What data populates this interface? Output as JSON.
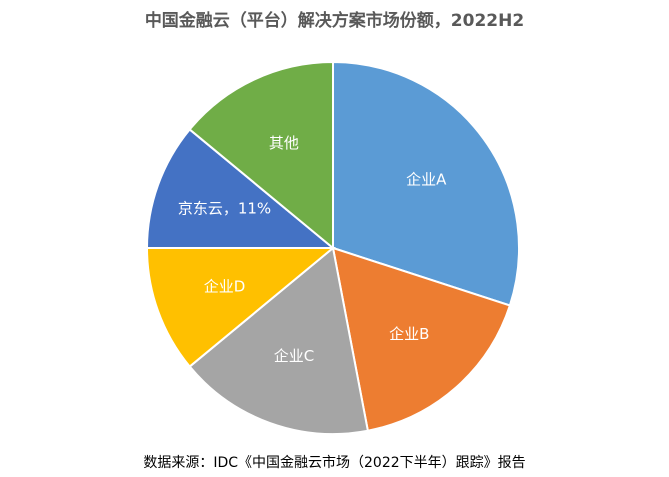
{
  "chart_data": {
    "type": "pie",
    "title": "中国金融云（平台）解决方案市场份额，2022H2",
    "source": "数据来源：IDC《中国金融云市场（2022下半年）跟踪》报告",
    "slices": [
      {
        "label": "企业A",
        "value": 30,
        "color": "#5b9bd5"
      },
      {
        "label": "企业B",
        "value": 17,
        "color": "#ed7d31"
      },
      {
        "label": "企业C",
        "value": 17,
        "color": "#a5a5a5"
      },
      {
        "label": "企业D",
        "value": 11,
        "color": "#ffc000"
      },
      {
        "label": "京东云，11%",
        "value": 11,
        "color": "#4472c4"
      },
      {
        "label": "其他",
        "value": 14,
        "color": "#70ad47"
      }
    ]
  }
}
